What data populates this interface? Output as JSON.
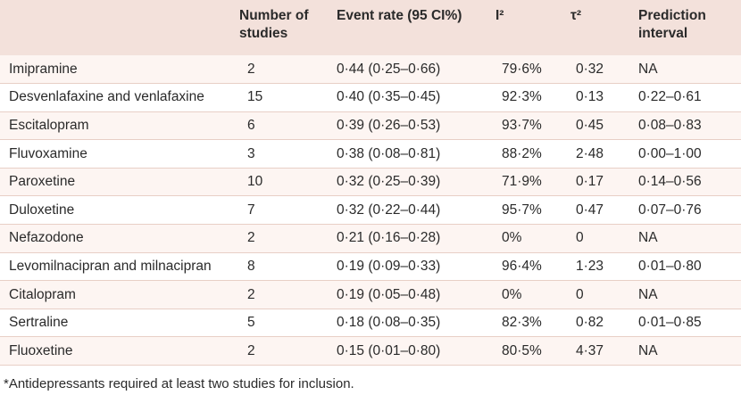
{
  "table": {
    "headers": {
      "drug": "",
      "n_studies": [
        "Number of",
        "studies"
      ],
      "event_rate": "Event rate (95 CI%)",
      "i2": "I²",
      "tau2": "τ²",
      "prediction": [
        "Prediction",
        "interval"
      ]
    },
    "rows": [
      {
        "drug": "Imipramine",
        "n": "2",
        "rate": "0·44 (0·25–0·66)",
        "i2": "79·6%",
        "tau2": "0·32",
        "pi": "NA"
      },
      {
        "drug": "Desvenlafaxine and venlafaxine",
        "n": "15",
        "rate": "0·40 (0·35–0·45)",
        "i2": "92·3%",
        "tau2": "0·13",
        "pi": "0·22–0·61"
      },
      {
        "drug": "Escitalopram",
        "n": "6",
        "rate": "0·39 (0·26–0·53)",
        "i2": "93·7%",
        "tau2": "0·45",
        "pi": "0·08–0·83"
      },
      {
        "drug": "Fluvoxamine",
        "n": "3",
        "rate": "0·38 (0·08–0·81)",
        "i2": "88·2%",
        "tau2": "2·48",
        "pi": "0·00–1·00"
      },
      {
        "drug": "Paroxetine",
        "n": "10",
        "rate": "0·32 (0·25–0·39)",
        "i2": "71·9%",
        "tau2": "0·17",
        "pi": "0·14–0·56"
      },
      {
        "drug": "Duloxetine",
        "n": "7",
        "rate": "0·32 (0·22–0·44)",
        "i2": "95·7%",
        "tau2": "0·47",
        "pi": "0·07–0·76"
      },
      {
        "drug": "Nefazodone",
        "n": "2",
        "rate": "0·21 (0·16–0·28)",
        "i2": "0%",
        "tau2": "0",
        "pi": "NA"
      },
      {
        "drug": "Levomilnacipran and milnacipran",
        "n": "8",
        "rate": "0·19 (0·09–0·33)",
        "i2": "96·4%",
        "tau2": "1·23",
        "pi": "0·01–0·80"
      },
      {
        "drug": "Citalopram",
        "n": "2",
        "rate": "0·19 (0·05–0·48)",
        "i2": "0%",
        "tau2": "0",
        "pi": "NA"
      },
      {
        "drug": "Sertraline",
        "n": "5",
        "rate": "0·18 (0·08–0·35)",
        "i2": "82·3%",
        "tau2": "0·82",
        "pi": "0·01–0·85"
      },
      {
        "drug": "Fluoxetine",
        "n": "2",
        "rate": "0·15 (0·01–0·80)",
        "i2": "80·5%",
        "tau2": "4·37",
        "pi": "NA"
      }
    ]
  },
  "footnote": "*Antidepressants required at least two studies for inclusion.",
  "colors": {
    "header_bg": "#f3e1db",
    "row_alt_bg": "#fdf5f2",
    "rule": "#e8cfc6"
  }
}
